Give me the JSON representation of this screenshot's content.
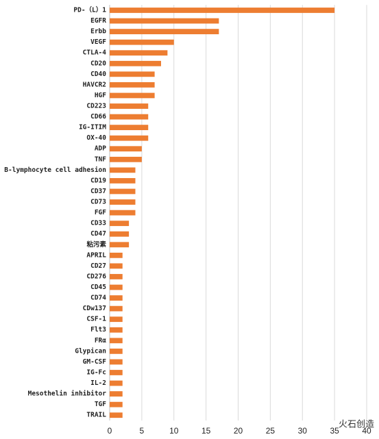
{
  "chart_data": {
    "type": "bar",
    "orientation": "horizontal",
    "categories": [
      "PD-（L）1",
      "EGFR",
      "Erbb",
      "VEGF",
      "CTLA-4",
      "CD20",
      "CD40",
      "HAVCR2",
      "HGF",
      "CD223",
      "CD66",
      "IG-ITIM",
      "OX-40",
      "ADP",
      "TNF",
      "B-lymphocyte cell adhesion",
      "CD19",
      "CD37",
      "CD73",
      "FGF",
      "CD33",
      "CD47",
      "粘污素",
      "APRIL",
      "CD27",
      "CD276",
      "CD45",
      "CD74",
      "CDw137",
      "CSF-1",
      "Flt3",
      "FRα",
      "Glypican",
      "GM-CSF",
      "IG-Fc",
      "IL-2",
      "Mesothelin inhibitor",
      "TGF",
      "TRAIL"
    ],
    "values": [
      35,
      17,
      17,
      10,
      9,
      8,
      7,
      7,
      7,
      6,
      6,
      6,
      6,
      5,
      5,
      4,
      4,
      4,
      4,
      4,
      3,
      3,
      3,
      2,
      2,
      2,
      2,
      2,
      2,
      2,
      2,
      2,
      2,
      2,
      2,
      2,
      2,
      2,
      2
    ],
    "color": "#ed7d31",
    "xlim": [
      0,
      40
    ],
    "xticks": [
      0,
      5,
      10,
      15,
      20,
      25,
      30,
      35,
      40
    ],
    "grid": true,
    "watermark": "火石创造"
  }
}
